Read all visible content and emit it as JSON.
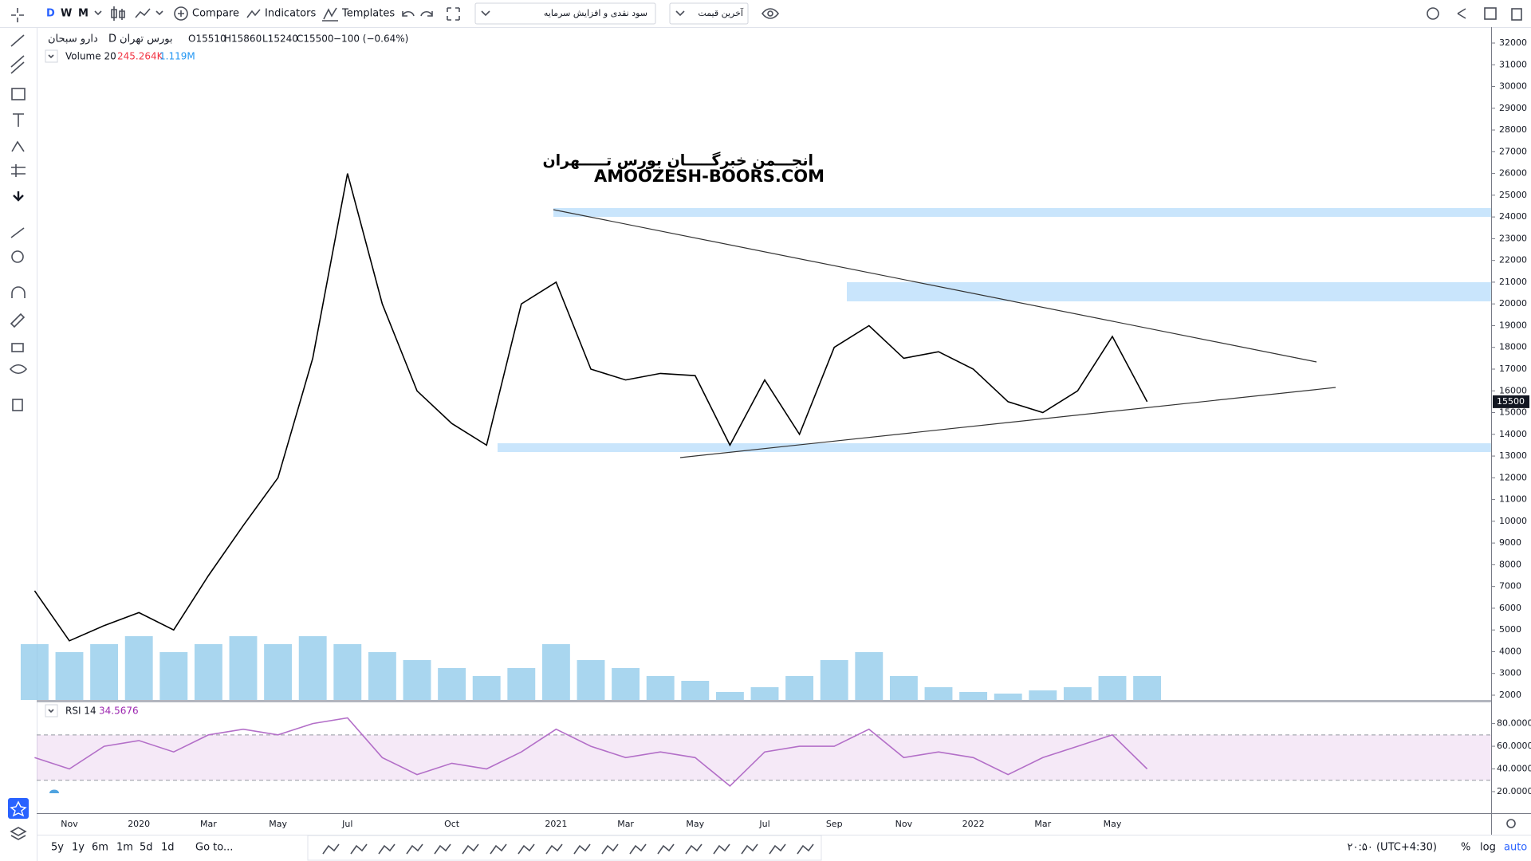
{
  "toolbar": {
    "intervals": [
      "D",
      "W",
      "M"
    ],
    "compare": "Compare",
    "indicators": "Indicators",
    "templates": "Templates",
    "dividends": "سود نقدی و افزایش سرمایه",
    "price_source": "آخرین قیمت"
  },
  "legend": {
    "symbol": "دارو سبحان",
    "interval": "D",
    "exchange": "بورس تهران",
    "open": "O15510",
    "high": "H15860",
    "low": "L15240",
    "close": "C15500",
    "change": "−100 (−0.64%)"
  },
  "volume_legend": {
    "name": "Volume 20",
    "value": "245.264K",
    "ma": "1.119M"
  },
  "rsi_legend": {
    "name": "RSI 14",
    "value": "34.5676"
  },
  "watermark": {
    "line1": "انجـــمن خبرگـــــان بورس تـــــهران",
    "line2": "AMOOZESH-BOORS.COM"
  },
  "chart_data": [
    {
      "type": "line",
      "color": "#000000",
      "categories": [
        null,
        "Nov",
        null,
        "2020",
        null,
        "Mar",
        null,
        "May",
        null,
        "Jul",
        null,
        null,
        "Oct",
        null,
        null,
        "2021",
        null,
        "Mar",
        null,
        "May",
        null,
        "Jul",
        null,
        "Sep",
        null,
        "Nov",
        null,
        "2022",
        null,
        "Mar",
        null,
        "May",
        null
      ],
      "values": [
        6800,
        4500,
        5200,
        5800,
        5000,
        7500,
        9800,
        12000,
        17500,
        26000,
        20000,
        16000,
        14500,
        13500,
        20000,
        21000,
        17000,
        16500,
        16800,
        16700,
        13500,
        16500,
        14000,
        18000,
        19000,
        17500,
        17800,
        17000,
        15500,
        15000,
        16000,
        18500,
        15500
      ],
      "ylim": [
        1780,
        32733
      ],
      "yticks": [
        2000,
        3000,
        4000,
        5000,
        6000,
        7000,
        8000,
        9000,
        10000,
        11000,
        12000,
        13000,
        14000,
        15000,
        16000,
        17000,
        18000,
        19000,
        20000,
        21000,
        22000,
        23000,
        24000,
        25000,
        26000,
        27000,
        28000,
        29000,
        30000,
        31000,
        32000
      ],
      "last_price": 15500,
      "volume": {
        "color": "#8cc8ea",
        "ylim": [
          0,
          12
        ],
        "values": [
          3.5,
          3,
          3.5,
          4,
          3,
          3.5,
          4,
          3.5,
          4,
          3.5,
          3,
          2.5,
          2,
          1.5,
          2,
          3.5,
          2.5,
          2,
          1.5,
          1.2,
          0.5,
          0.8,
          1.5,
          2.5,
          3,
          1.5,
          0.8,
          0.5,
          0.4,
          0.6,
          0.8,
          1.5,
          1.5
        ]
      }
    },
    {
      "type": "line",
      "color": "#b36fc8",
      "values": [
        50,
        40,
        60,
        65,
        55,
        70,
        75,
        70,
        80,
        85,
        50,
        35,
        45,
        40,
        55,
        75,
        60,
        50,
        55,
        50,
        25,
        55,
        60,
        60,
        75,
        50,
        55,
        50,
        35,
        50,
        60,
        70,
        40
      ],
      "ylim": [
        1,
        98
      ],
      "yticks": [
        {
          "value": 20,
          "label": "20.0000"
        },
        {
          "value": 40,
          "label": "40.0000"
        },
        {
          "value": 60,
          "label": "60.0000"
        },
        {
          "value": 80,
          "label": "80.0000"
        }
      ],
      "band": [
        30,
        70
      ]
    }
  ],
  "bottom_bar": {
    "ranges": [
      "5y",
      "1y",
      "6m",
      "1m",
      "5d",
      "1d"
    ],
    "goto": "Go to...",
    "timezone": "۲۰:۵۰ (UTC+4:30)",
    "percent": "%",
    "log": "log",
    "auto": "auto"
  }
}
